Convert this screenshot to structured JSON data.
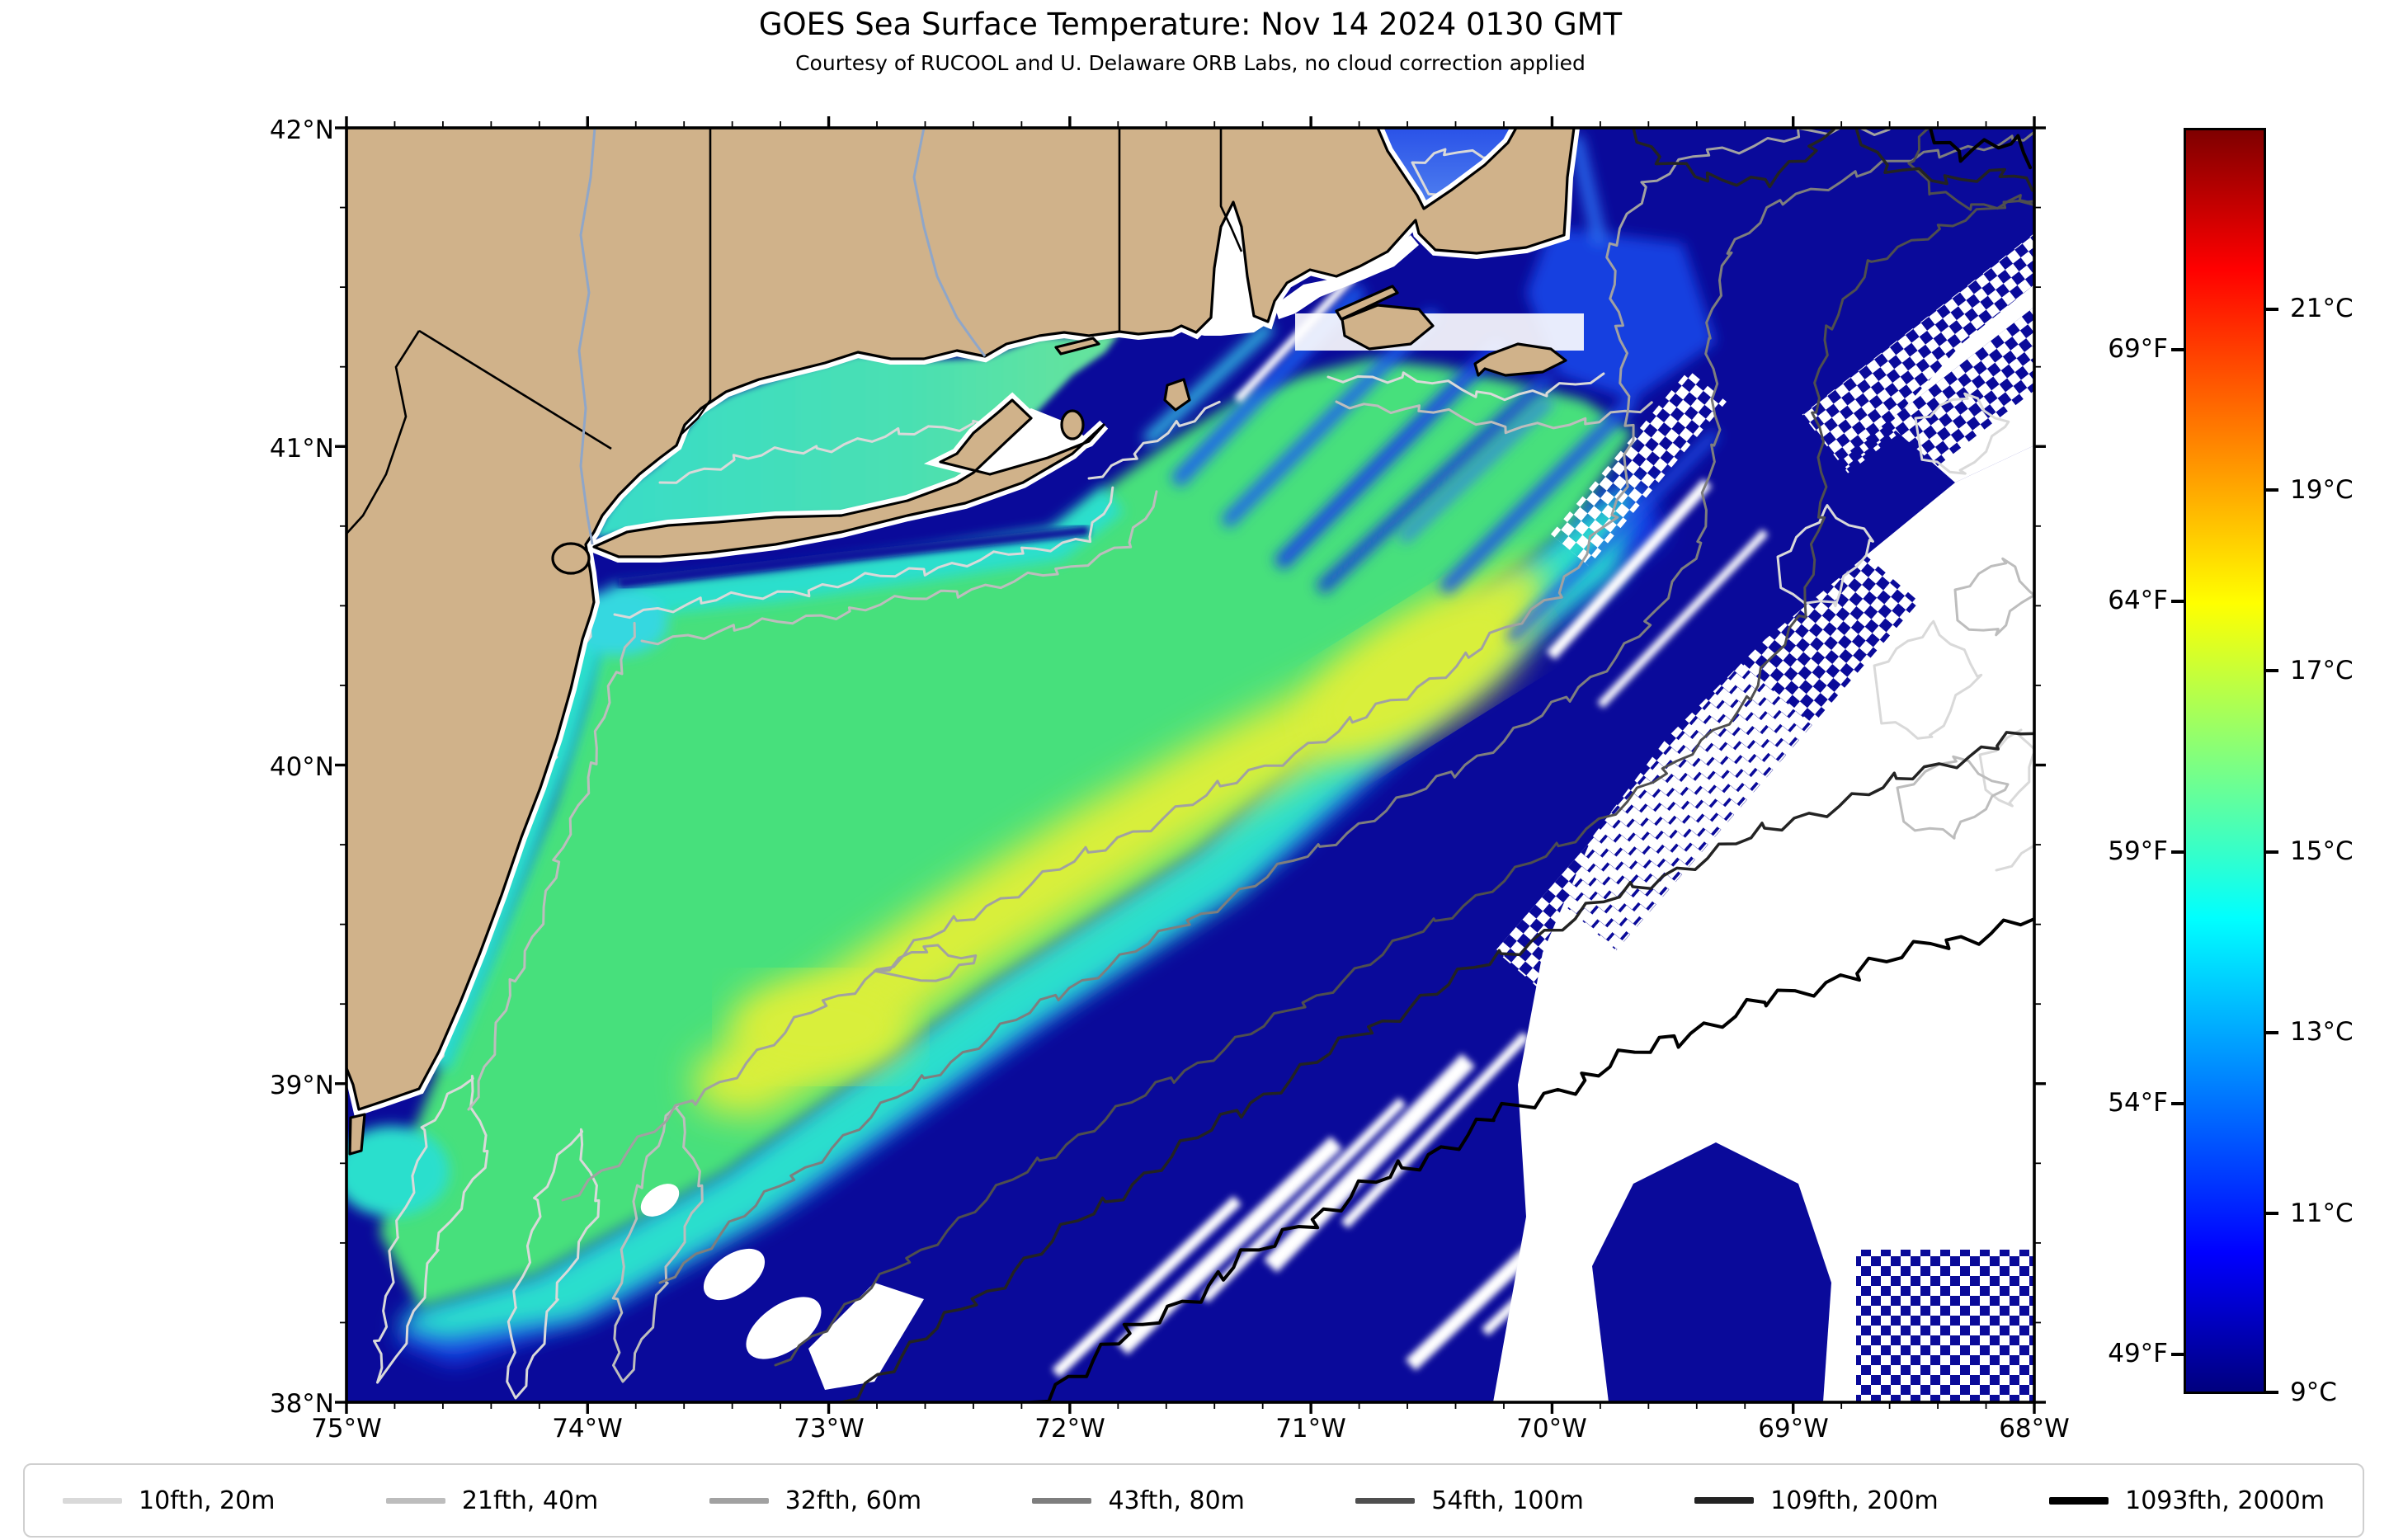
{
  "title": "GOES Sea Surface Temperature: Nov 14 2024 0130 GMT",
  "subtitle": "Courtesy of RUCOOL and U. Delaware ORB Labs, no cloud correction applied",
  "axes": {
    "x": {
      "tick_labels": [
        "75°W",
        "74°W",
        "73°W",
        "72°W",
        "71°W",
        "70°W",
        "69°W",
        "68°W"
      ]
    },
    "y": {
      "tick_labels": [
        "42°N",
        "41°N",
        "40°N",
        "39°N",
        "38°N"
      ]
    }
  },
  "colorbar": {
    "unit_left": "°F",
    "unit_right": "°C",
    "celsius_ticks": [
      "21°C",
      "19°C",
      "17°C",
      "15°C",
      "13°C",
      "11°C",
      "9°C"
    ],
    "fahrenheit_ticks": [
      "69°F",
      "64°F",
      "59°F",
      "54°F",
      "49°F"
    ],
    "min_c": 9,
    "max_c": 23,
    "colormap": "jet",
    "stops": [
      {
        "t": 0.0,
        "color": "#00007f"
      },
      {
        "t": 0.11,
        "color": "#0000ff"
      },
      {
        "t": 0.375,
        "color": "#00ffff"
      },
      {
        "t": 0.625,
        "color": "#ffff00"
      },
      {
        "t": 0.89,
        "color": "#ff0000"
      },
      {
        "t": 1.0,
        "color": "#7f0000"
      }
    ]
  },
  "legend": {
    "items": [
      {
        "label": "10fth, 20m",
        "color": "#d9d9d9"
      },
      {
        "label": "21fth, 40m",
        "color": "#bdbdbd"
      },
      {
        "label": "32fth, 60m",
        "color": "#a1a1a1"
      },
      {
        "label": "43fth, 80m",
        "color": "#7e7e7e"
      },
      {
        "label": "54fth, 100m",
        "color": "#4f4f4f"
      },
      {
        "label": "109fth, 200m",
        "color": "#232323"
      },
      {
        "label": "1093fth, 2000m",
        "color": "#000000"
      }
    ]
  },
  "colors": {
    "land": "#d0b28a",
    "coastline": "#000000",
    "ocean_deep": "#0a0a9a",
    "front_blue": "#1441e8",
    "coastal_cyan": "#2bdfcd",
    "shelf_green": "#46e07c",
    "shelf_yellow": "#d9ef3a",
    "cloud_white": "#ffffff",
    "sound_west": "#38dcc8",
    "sound_east": "#68e39a",
    "bay_blue": "#2a52e8",
    "river": "#8fa6c8",
    "state_border": "#000000",
    "frame": "#000000"
  },
  "chart_data": {
    "type": "heatmap",
    "title": "GOES Sea Surface Temperature: Nov 14 2024 0130 GMT",
    "subtitle": "Courtesy of RUCOOL and U. Delaware ORB Labs, no cloud correction applied",
    "xlabel": "",
    "ylabel": "",
    "extent": {
      "lon_deg_w": [
        75,
        68
      ],
      "lat_deg_n": [
        38,
        42
      ]
    },
    "x_ticks": [
      "75°W",
      "74°W",
      "73°W",
      "72°W",
      "71°W",
      "70°W",
      "69°W",
      "68°W"
    ],
    "y_ticks": [
      "42°N",
      "41°N",
      "40°N",
      "39°N",
      "38°N"
    ],
    "grid": false,
    "legend_position": "bottom",
    "colorbar": {
      "colormap": "jet",
      "range_c": [
        9,
        23
      ],
      "ticks_c": [
        9,
        11,
        13,
        15,
        17,
        19,
        21
      ],
      "ticks_f": [
        49,
        54,
        59,
        64,
        69
      ]
    },
    "bathymetry_contours": [
      {
        "fathoms": 10,
        "meters": 20
      },
      {
        "fathoms": 21,
        "meters": 40
      },
      {
        "fathoms": 32,
        "meters": 60
      },
      {
        "fathoms": 43,
        "meters": 80
      },
      {
        "fathoms": 54,
        "meters": 100
      },
      {
        "fathoms": 109,
        "meters": 200
      },
      {
        "fathoms": 1093,
        "meters": 2000
      }
    ],
    "sst_readings": [
      {
        "area": "mid-shelf warm band running southwest to northeast",
        "approx_c": 16.5
      },
      {
        "area": "inner shelf and Long Island Sound",
        "approx_c": 14.5
      },
      {
        "area": "shelf-break front transition band",
        "approx_c": 12
      },
      {
        "area": "offshore slope and Gulf of Maine cold water",
        "approx_c": 9.5
      },
      {
        "area": "Cape Cod Bay",
        "approx_c": 12.5
      },
      {
        "area": "eastern and southeastern sector",
        "value": "no data (cloud, rendered white)"
      }
    ]
  }
}
